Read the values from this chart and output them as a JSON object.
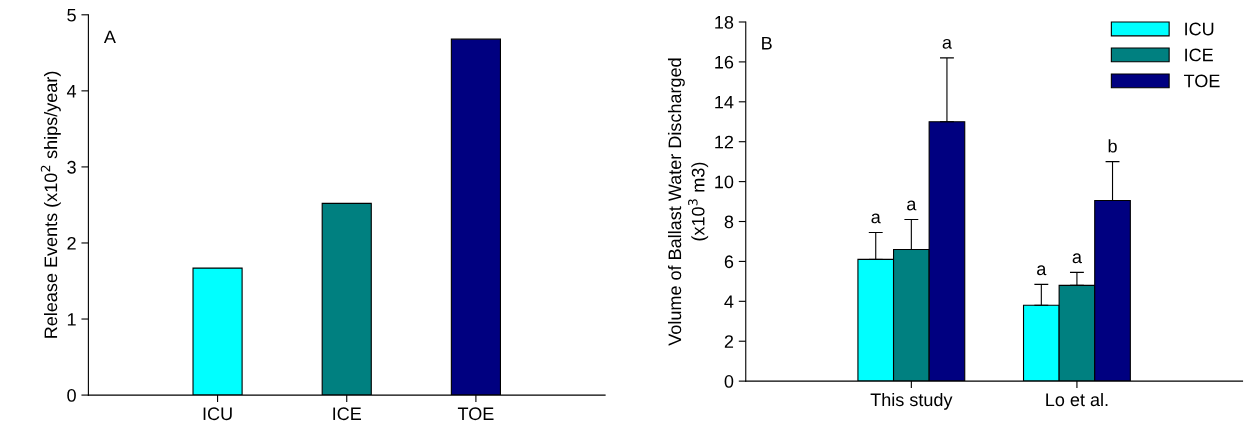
{
  "chart_data": [
    {
      "type": "bar",
      "categories": [
        "ICU",
        "ICE",
        "TOE"
      ],
      "values": [
        1.67,
        2.52,
        4.68
      ],
      "colors": [
        "#00ffff",
        "#008080",
        "#000080"
      ],
      "ylabel": "Release Events (x10$^{2}$ ships/year)",
      "ylim": [
        0,
        5
      ],
      "yticks": [
        0,
        1,
        2,
        3,
        4,
        5
      ],
      "grid": false,
      "legend": false,
      "annotations": [
        "A"
      ]
    },
    {
      "type": "bar",
      "categories": [
        "This study",
        "Lo et al."
      ],
      "ylabel": "Volume of Ballast Water Discharged\n(x10$^{3}$ m3)",
      "ylim": [
        0,
        18
      ],
      "yticks": [
        0,
        2,
        4,
        6,
        8,
        10,
        12,
        14,
        16,
        18
      ],
      "grid": false,
      "legend": "top right",
      "series": [
        {
          "name": "ICU",
          "color": "#00ffff",
          "values": [
            6.1,
            3.8
          ],
          "errors": [
            [
              6.1,
              7.45
            ],
            [
              3.8,
              4.85
            ]
          ]
        },
        {
          "name": "ICE",
          "color": "#008080",
          "values": [
            6.6,
            4.8
          ],
          "errors": [
            [
              6.6,
              8.1
            ],
            [
              4.8,
              5.45
            ]
          ]
        },
        {
          "name": "TOE",
          "color": "#000080",
          "values": [
            13.0,
            9.05
          ],
          "errors": [
            [
              13.0,
              16.2
            ],
            [
              9.05,
              11.0
            ]
          ]
        }
      ],
      "annotations": [
        "B",
        "a",
        "a",
        "a",
        "a",
        "a",
        "b"
      ]
    }
  ]
}
